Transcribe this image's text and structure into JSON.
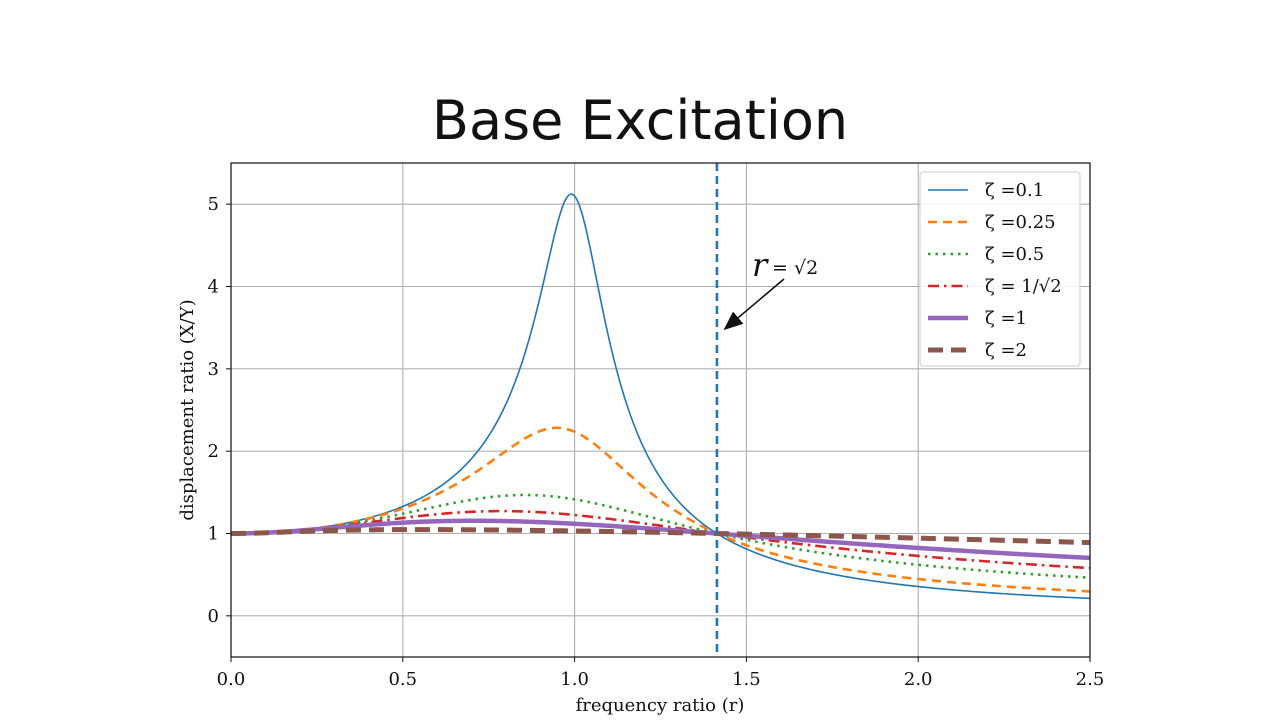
{
  "slide": {
    "title": "Base Excitation"
  },
  "chart_data": {
    "type": "line",
    "xlabel": "frequency ratio (r)",
    "ylabel": "displacement ratio (X/Y)",
    "xlim": [
      0,
      2.5
    ],
    "ylim": [
      -0.5,
      5.5
    ],
    "xticks": [
      0.0,
      0.5,
      1.0,
      1.5,
      2.0,
      2.5
    ],
    "xtick_labels": [
      "0.0",
      "0.5",
      "1.0",
      "1.5",
      "2.0",
      "2.5"
    ],
    "yticks": [
      0,
      1,
      2,
      3,
      4,
      5
    ],
    "ytick_labels": [
      "0",
      "1",
      "2",
      "3",
      "4",
      "5"
    ],
    "grid": true,
    "legend_position": "top-right",
    "curve_model": "base excitation transmissibility sqrt((1+(2 zeta r)^2)/((1-r^2)^2+(2 zeta r)^2))",
    "series": [
      {
        "name": "ζ =0.1",
        "zeta": 0.1,
        "color": "#1f77b4",
        "style": "solid",
        "peak": [
          0.99,
          5.12
        ]
      },
      {
        "name": "ζ =0.25",
        "zeta": 0.25,
        "color": "#ff7f0e",
        "style": "dashed",
        "peak": [
          0.95,
          2.28
        ]
      },
      {
        "name": "ζ =0.5",
        "zeta": 0.5,
        "color": "#2ca02c",
        "style": "dotted",
        "peak": [
          0.86,
          1.47
        ]
      },
      {
        "name": "ζ = 1/√2",
        "zeta": 0.7071,
        "color": "#d62728",
        "style": "dashdot",
        "peak": [
          0.79,
          1.27
        ]
      },
      {
        "name": "ζ =1",
        "zeta": 1.0,
        "color": "#9467bd",
        "style": "solid-thick",
        "peak": [
          0.67,
          1.15
        ]
      },
      {
        "name": "ζ =2",
        "zeta": 2.0,
        "color": "#8c564b",
        "style": "dashed-thick",
        "peak": [
          0.45,
          1.05
        ]
      }
    ],
    "reference_line": {
      "x": 1.4142,
      "color": "#1f77b4",
      "style": "dashed"
    },
    "annotation": {
      "text_r": "r",
      "text_eq": "= √2",
      "points_to": [
        1.4142,
        3.45
      ]
    }
  }
}
